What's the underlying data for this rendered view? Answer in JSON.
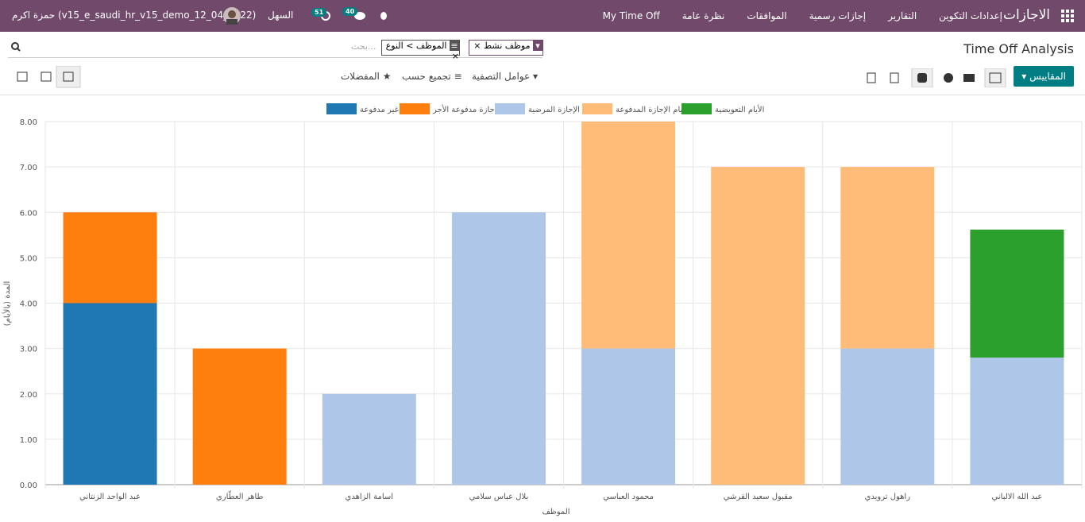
{
  "navbar": {
    "app": "الاجازات",
    "menu": [
      "My Time Off",
      "نظرة عامة",
      "الموافقات",
      "إجازات رسمية",
      "التقارير",
      "إعدادات التكوين"
    ],
    "company": "السهل",
    "activity_count": 51,
    "message_count": 40,
    "user": "حمزة اكرم (v15_e_saudi_hr_v15_demo_12_04_2022)"
  },
  "control_panel": {
    "title": "Time Off Analysis",
    "facets": [
      "موظف نشط",
      "الموظف > النوع"
    ],
    "search_placeholder": "بحث...",
    "measures": "المقاييس",
    "filters": "عوامل التصفية",
    "group_by": "تجميع حسب",
    "favorites": "المفضلات"
  },
  "chart_data": {
    "type": "bar",
    "stacked": true,
    "categories": [
      "عبد الواحد الزنتاني",
      "طاهر العطّاري",
      "اسامة الزاهدي",
      "بلال عباس سلامي",
      "محمود العباسي",
      "مقبول سعيد القرشي",
      "راهول ترويدي",
      "عبد الله الالباني"
    ],
    "series": [
      {
        "name": "غير مدفوعة",
        "color": "#1f77b4",
        "values": [
          4,
          0,
          0,
          0,
          0,
          0,
          0,
          0
        ]
      },
      {
        "name": "إجازة مدفوعة الأجر",
        "color": "#ff7f0e",
        "values": [
          2,
          3,
          0,
          0,
          0,
          0,
          0,
          0
        ]
      },
      {
        "name": "الإجازة المرضية",
        "color": "#aec7e8",
        "values": [
          0,
          0,
          2,
          6,
          3,
          0,
          3,
          2.8
        ]
      },
      {
        "name": "أيام الإجازة المدفوعة",
        "color": "#ffbb78",
        "values": [
          0,
          0,
          0,
          0,
          5,
          7,
          4,
          0
        ]
      },
      {
        "name": "الأيام التعويضية",
        "color": "#2ca02c",
        "values": [
          0,
          0,
          0,
          0,
          0,
          0,
          0,
          2.82
        ]
      }
    ],
    "x_label": "الموظف",
    "y_label": "المدة (بالأيام)",
    "ylim": [
      0,
      8
    ],
    "yticks": [
      {
        "value": 0,
        "label": "0.00"
      },
      {
        "value": 1,
        "label": "1.00"
      },
      {
        "value": 2,
        "label": "2.00"
      },
      {
        "value": 3,
        "label": "3.00"
      },
      {
        "value": 4,
        "label": "4.00"
      },
      {
        "value": 5,
        "label": "5.00"
      },
      {
        "value": 6,
        "label": "6.00"
      },
      {
        "value": 7,
        "label": "7.00"
      },
      {
        "value": 8,
        "label": "8.00"
      }
    ],
    "grid": true
  }
}
